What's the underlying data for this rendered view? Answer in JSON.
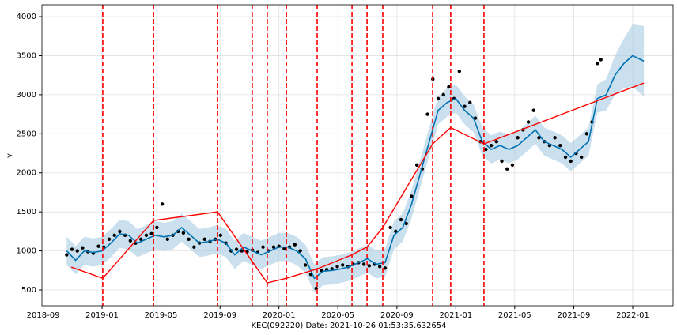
{
  "chart_data": {
    "type": "forecast",
    "xlabel": "KEC(092220) Date: 2021-10-26 01:53:35.632654",
    "ylabel": "y",
    "xlim": [
      2018.66,
      2022.228
    ],
    "ylim": [
      298,
      4152
    ],
    "xticks": [
      {
        "value": 2018.667,
        "label": "2018-09"
      },
      {
        "value": 2019.0,
        "label": "2019-01"
      },
      {
        "value": 2019.333,
        "label": "2019-05"
      },
      {
        "value": 2019.667,
        "label": "2019-09"
      },
      {
        "value": 2020.0,
        "label": "2020-01"
      },
      {
        "value": 2020.333,
        "label": "2020-05"
      },
      {
        "value": 2020.667,
        "label": "2020-09"
      },
      {
        "value": 2021.0,
        "label": "2021-01"
      },
      {
        "value": 2021.333,
        "label": "2021-05"
      },
      {
        "value": 2021.667,
        "label": "2021-09"
      },
      {
        "value": 2022.0,
        "label": "2022-01"
      }
    ],
    "yticks": [
      500,
      1000,
      1500,
      2000,
      2500,
      3000,
      3500,
      4000
    ],
    "grid": true,
    "band_color": "#a6cbe3",
    "forecast": {
      "color": "#0072b2",
      "x": [
        2018.8,
        2018.85,
        2018.9,
        2018.95,
        2019.0,
        2019.05,
        2019.1,
        2019.15,
        2019.2,
        2019.25,
        2019.3,
        2019.35,
        2019.4,
        2019.45,
        2019.5,
        2019.55,
        2019.6,
        2019.65,
        2019.7,
        2019.75,
        2019.8,
        2019.85,
        2019.9,
        2019.95,
        2020.0,
        2020.05,
        2020.1,
        2020.15,
        2020.2,
        2020.25,
        2020.3,
        2020.35,
        2020.4,
        2020.45,
        2020.5,
        2020.55,
        2020.6,
        2020.65,
        2020.7,
        2020.75,
        2020.8,
        2020.85,
        2020.9,
        2020.95,
        2021.0,
        2021.05,
        2021.1,
        2021.15,
        2021.2,
        2021.25,
        2021.3,
        2021.35,
        2021.4,
        2021.45,
        2021.5,
        2021.55,
        2021.6,
        2021.65,
        2021.7,
        2021.75,
        2021.8,
        2021.85,
        2021.9,
        2021.95,
        2022.0,
        2022.063
      ],
      "values": [
        1000,
        880,
        1000,
        980,
        1000,
        1100,
        1220,
        1200,
        1100,
        1150,
        1200,
        1180,
        1200,
        1300,
        1200,
        1100,
        1120,
        1150,
        1100,
        950,
        1050,
        1000,
        950,
        1000,
        1050,
        1050,
        1000,
        900,
        650,
        740,
        750,
        770,
        800,
        850,
        900,
        830,
        850,
        1200,
        1300,
        1600,
        2000,
        2400,
        2800,
        2900,
        2950,
        2800,
        2700,
        2400,
        2300,
        2350,
        2300,
        2350,
        2450,
        2550,
        2400,
        2350,
        2300,
        2200,
        2300,
        2400,
        2950,
        3000,
        3250,
        3400,
        3500,
        3430
      ],
      "lower": [
        820,
        700,
        820,
        800,
        820,
        920,
        1040,
        1020,
        920,
        970,
        1020,
        1000,
        1020,
        1120,
        1020,
        920,
        940,
        970,
        920,
        770,
        870,
        820,
        770,
        820,
        870,
        870,
        820,
        720,
        470,
        560,
        570,
        590,
        620,
        670,
        720,
        650,
        670,
        1020,
        1120,
        1420,
        1820,
        2220,
        2620,
        2720,
        2770,
        2620,
        2520,
        2220,
        2120,
        2170,
        2120,
        2170,
        2270,
        2370,
        2220,
        2170,
        2120,
        2020,
        2120,
        2220,
        2770,
        2800,
        3000,
        3080,
        3100,
        2980
      ],
      "upper": [
        1180,
        1060,
        1180,
        1160,
        1180,
        1280,
        1400,
        1380,
        1280,
        1330,
        1380,
        1360,
        1380,
        1480,
        1380,
        1280,
        1300,
        1330,
        1280,
        1130,
        1230,
        1180,
        1130,
        1180,
        1230,
        1230,
        1180,
        1080,
        830,
        920,
        930,
        950,
        980,
        1030,
        1080,
        1010,
        1030,
        1380,
        1480,
        1780,
        2180,
        2580,
        2980,
        3080,
        3130,
        2980,
        2880,
        2580,
        2480,
        2530,
        2480,
        2530,
        2630,
        2730,
        2580,
        2530,
        2480,
        2380,
        2480,
        2580,
        3130,
        3200,
        3500,
        3720,
        3900,
        3880
      ]
    },
    "trend": {
      "color": "#ff0000",
      "x": [
        2018.826,
        2019.004,
        2019.291,
        2019.653,
        2019.849,
        2019.934,
        2020.042,
        2020.216,
        2020.413,
        2020.498,
        2020.587,
        2020.869,
        2020.971,
        2021.159,
        2022.063
      ],
      "values": [
        793,
        650,
        1390,
        1500,
        864,
        590,
        650,
        770,
        950,
        1050,
        1300,
        2370,
        2580,
        2370,
        3150
      ]
    },
    "changepoints": {
      "color": "#ff0000",
      "x": [
        2019.004,
        2019.291,
        2019.653,
        2019.849,
        2019.934,
        2020.042,
        2020.216,
        2020.413,
        2020.498,
        2020.587,
        2020.869,
        2020.971,
        2021.159
      ]
    },
    "observations": {
      "color": "#000000",
      "x": [
        2018.8,
        2018.83,
        2018.86,
        2018.89,
        2018.92,
        2018.95,
        2018.98,
        2019.01,
        2019.04,
        2019.07,
        2019.1,
        2019.13,
        2019.16,
        2019.19,
        2019.22,
        2019.25,
        2019.28,
        2019.31,
        2019.34,
        2019.37,
        2019.4,
        2019.43,
        2019.46,
        2019.49,
        2019.52,
        2019.55,
        2019.58,
        2019.61,
        2019.64,
        2019.67,
        2019.7,
        2019.73,
        2019.76,
        2019.79,
        2019.82,
        2019.85,
        2019.88,
        2019.91,
        2019.94,
        2019.97,
        2020.0,
        2020.03,
        2020.06,
        2020.09,
        2020.12,
        2020.15,
        2020.18,
        2020.21,
        2020.24,
        2020.27,
        2020.3,
        2020.33,
        2020.36,
        2020.39,
        2020.42,
        2020.45,
        2020.48,
        2020.51,
        2020.54,
        2020.57,
        2020.6,
        2020.63,
        2020.66,
        2020.69,
        2020.72,
        2020.75,
        2020.78,
        2020.81,
        2020.84,
        2020.87,
        2020.9,
        2020.93,
        2020.96,
        2020.99,
        2021.02,
        2021.05,
        2021.08,
        2021.11,
        2021.14,
        2021.17,
        2021.2,
        2021.23,
        2021.26,
        2021.29,
        2021.32,
        2021.35,
        2021.38,
        2021.41,
        2021.44,
        2021.47,
        2021.5,
        2021.53,
        2021.56,
        2021.59,
        2021.62,
        2021.65,
        2021.68,
        2021.71,
        2021.74,
        2021.77,
        2021.8,
        2021.82
      ],
      "values": [
        950,
        1020,
        1000,
        1040,
        990,
        970,
        1060,
        1050,
        1150,
        1200,
        1250,
        1200,
        1130,
        1100,
        1150,
        1200,
        1220,
        1300,
        1600,
        1150,
        1200,
        1250,
        1230,
        1150,
        1050,
        1100,
        1150,
        1120,
        1150,
        1200,
        1100,
        1000,
        1020,
        1000,
        990,
        1010,
        980,
        1050,
        1000,
        1050,
        1060,
        1030,
        1050,
        1080,
        1000,
        820,
        700,
        520,
        750,
        760,
        770,
        800,
        820,
        800,
        830,
        850,
        830,
        810,
        830,
        800,
        780,
        1300,
        1250,
        1400,
        1350,
        1700,
        2100,
        2050,
        2750,
        3200,
        2950,
        3000,
        3100,
        2950,
        3300,
        2850,
        2900,
        2700,
        2400,
        2300,
        2350,
        2400,
        2150,
        2050,
        2100,
        2450,
        2550,
        2650,
        2800,
        2450,
        2400,
        2350,
        2450,
        2350,
        2200,
        2150,
        2250,
        2200,
        2500,
        2650,
        3400,
        3450
      ]
    }
  }
}
